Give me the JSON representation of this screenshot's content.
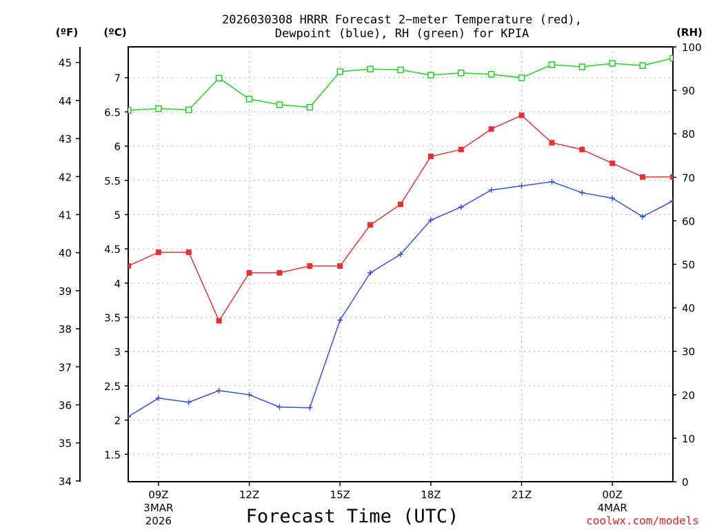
{
  "chart_data": {
    "type": "line",
    "title": "2026030308 HRRR Forecast 2−meter Temperature (red),",
    "subtitle": "Dewpoint (blue), RH (green) for KPIA",
    "xlabel": "Forecast Time (UTC)",
    "credit": "coolwx.com/models",
    "left_unit_f": "(ºF)",
    "left_unit_c": "(ºC)",
    "right_unit": "(RH)",
    "x_hours": [
      8,
      9,
      10,
      11,
      12,
      13,
      14,
      15,
      16,
      17,
      18,
      19,
      20,
      21,
      22,
      23,
      24,
      25,
      26
    ],
    "x_range": [
      8,
      26
    ],
    "x_ticks": [
      {
        "hour": 9,
        "label": "09Z",
        "label2": "3MAR",
        "label3": "2026"
      },
      {
        "hour": 12,
        "label": "12Z"
      },
      {
        "hour": 15,
        "label": "15Z"
      },
      {
        "hour": 18,
        "label": "18Z"
      },
      {
        "hour": 21,
        "label": "21Z"
      },
      {
        "hour": 24,
        "label": "00Z",
        "label2": "4MAR"
      }
    ],
    "celsius_range": [
      1.1,
      7.45
    ],
    "celsius_ticks": [
      1.5,
      2,
      2.5,
      3,
      3.5,
      4,
      4.5,
      5,
      5.5,
      6,
      6.5,
      7
    ],
    "fahrenheit_ticks": [
      34,
      35,
      36,
      37,
      38,
      39,
      40,
      41,
      42,
      43,
      44,
      45
    ],
    "rh_range": [
      0,
      100
    ],
    "rh_ticks": [
      0,
      10,
      20,
      30,
      40,
      50,
      60,
      70,
      80,
      90,
      100
    ],
    "series": [
      {
        "name": "Temperature",
        "axis": "celsius",
        "color": "#e83030",
        "marker": "filled-square",
        "values": [
          4.25,
          4.45,
          4.45,
          3.45,
          4.15,
          4.15,
          4.25,
          4.25,
          4.85,
          5.15,
          5.85,
          5.95,
          6.25,
          6.45,
          6.05,
          5.95,
          5.75,
          5.55,
          5.55
        ]
      },
      {
        "name": "Dewpoint",
        "axis": "celsius",
        "color": "#3050e8",
        "marker": "plus",
        "values": [
          2.05,
          2.32,
          2.26,
          2.43,
          2.37,
          2.19,
          2.18,
          3.46,
          4.15,
          4.42,
          4.92,
          5.11,
          5.36,
          5.42,
          5.48,
          5.32,
          5.24,
          4.97,
          5.2
        ]
      },
      {
        "name": "RH",
        "axis": "rh",
        "color": "#20d020",
        "marker": "open-square",
        "values": [
          85.4,
          85.8,
          85.5,
          92.8,
          88.0,
          86.7,
          86.1,
          94.3,
          94.9,
          94.7,
          93.5,
          94.0,
          93.7,
          92.9,
          95.9,
          95.4,
          96.2,
          95.7,
          97.4
        ]
      }
    ],
    "grid": true
  }
}
